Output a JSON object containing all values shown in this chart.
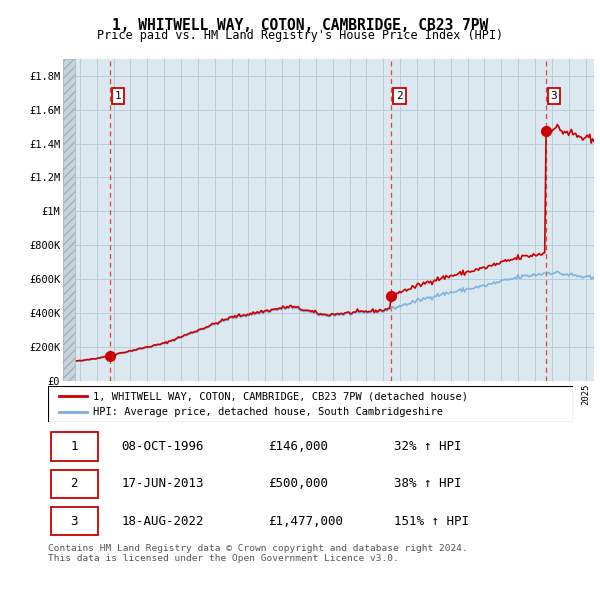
{
  "title": "1, WHITWELL WAY, COTON, CAMBRIDGE, CB23 7PW",
  "subtitle": "Price paid vs. HM Land Registry's House Price Index (HPI)",
  "ylim": [
    0,
    1900000
  ],
  "yticks": [
    0,
    200000,
    400000,
    600000,
    800000,
    1000000,
    1200000,
    1400000,
    1600000,
    1800000
  ],
  "ytick_labels": [
    "£0",
    "£200K",
    "£400K",
    "£600K",
    "£800K",
    "£1M",
    "£1.2M",
    "£1.4M",
    "£1.6M",
    "£1.8M"
  ],
  "sale_dates": [
    1996.78,
    2013.46,
    2022.63
  ],
  "sale_prices": [
    146000,
    500000,
    1477000
  ],
  "sale_labels": [
    "1",
    "2",
    "3"
  ],
  "hpi_line_color": "#7aaddd",
  "price_line_color": "#cc0000",
  "sale_marker_color": "#cc0000",
  "vline_color": "#dd4444",
  "grid_color": "#b8ccd8",
  "bg_color": "#dce8f0",
  "legend_label_price": "1, WHITWELL WAY, COTON, CAMBRIDGE, CB23 7PW (detached house)",
  "legend_label_hpi": "HPI: Average price, detached house, South Cambridgeshire",
  "footer": "Contains HM Land Registry data © Crown copyright and database right 2024.\nThis data is licensed under the Open Government Licence v3.0.",
  "table_rows": [
    [
      "1",
      "08-OCT-1996",
      "£146,000",
      "32% ↑ HPI"
    ],
    [
      "2",
      "17-JUN-2013",
      "£500,000",
      "38% ↑ HPI"
    ],
    [
      "3",
      "18-AUG-2022",
      "£1,477,000",
      "151% ↑ HPI"
    ]
  ],
  "xmin": 1994.0,
  "xmax": 2025.5
}
